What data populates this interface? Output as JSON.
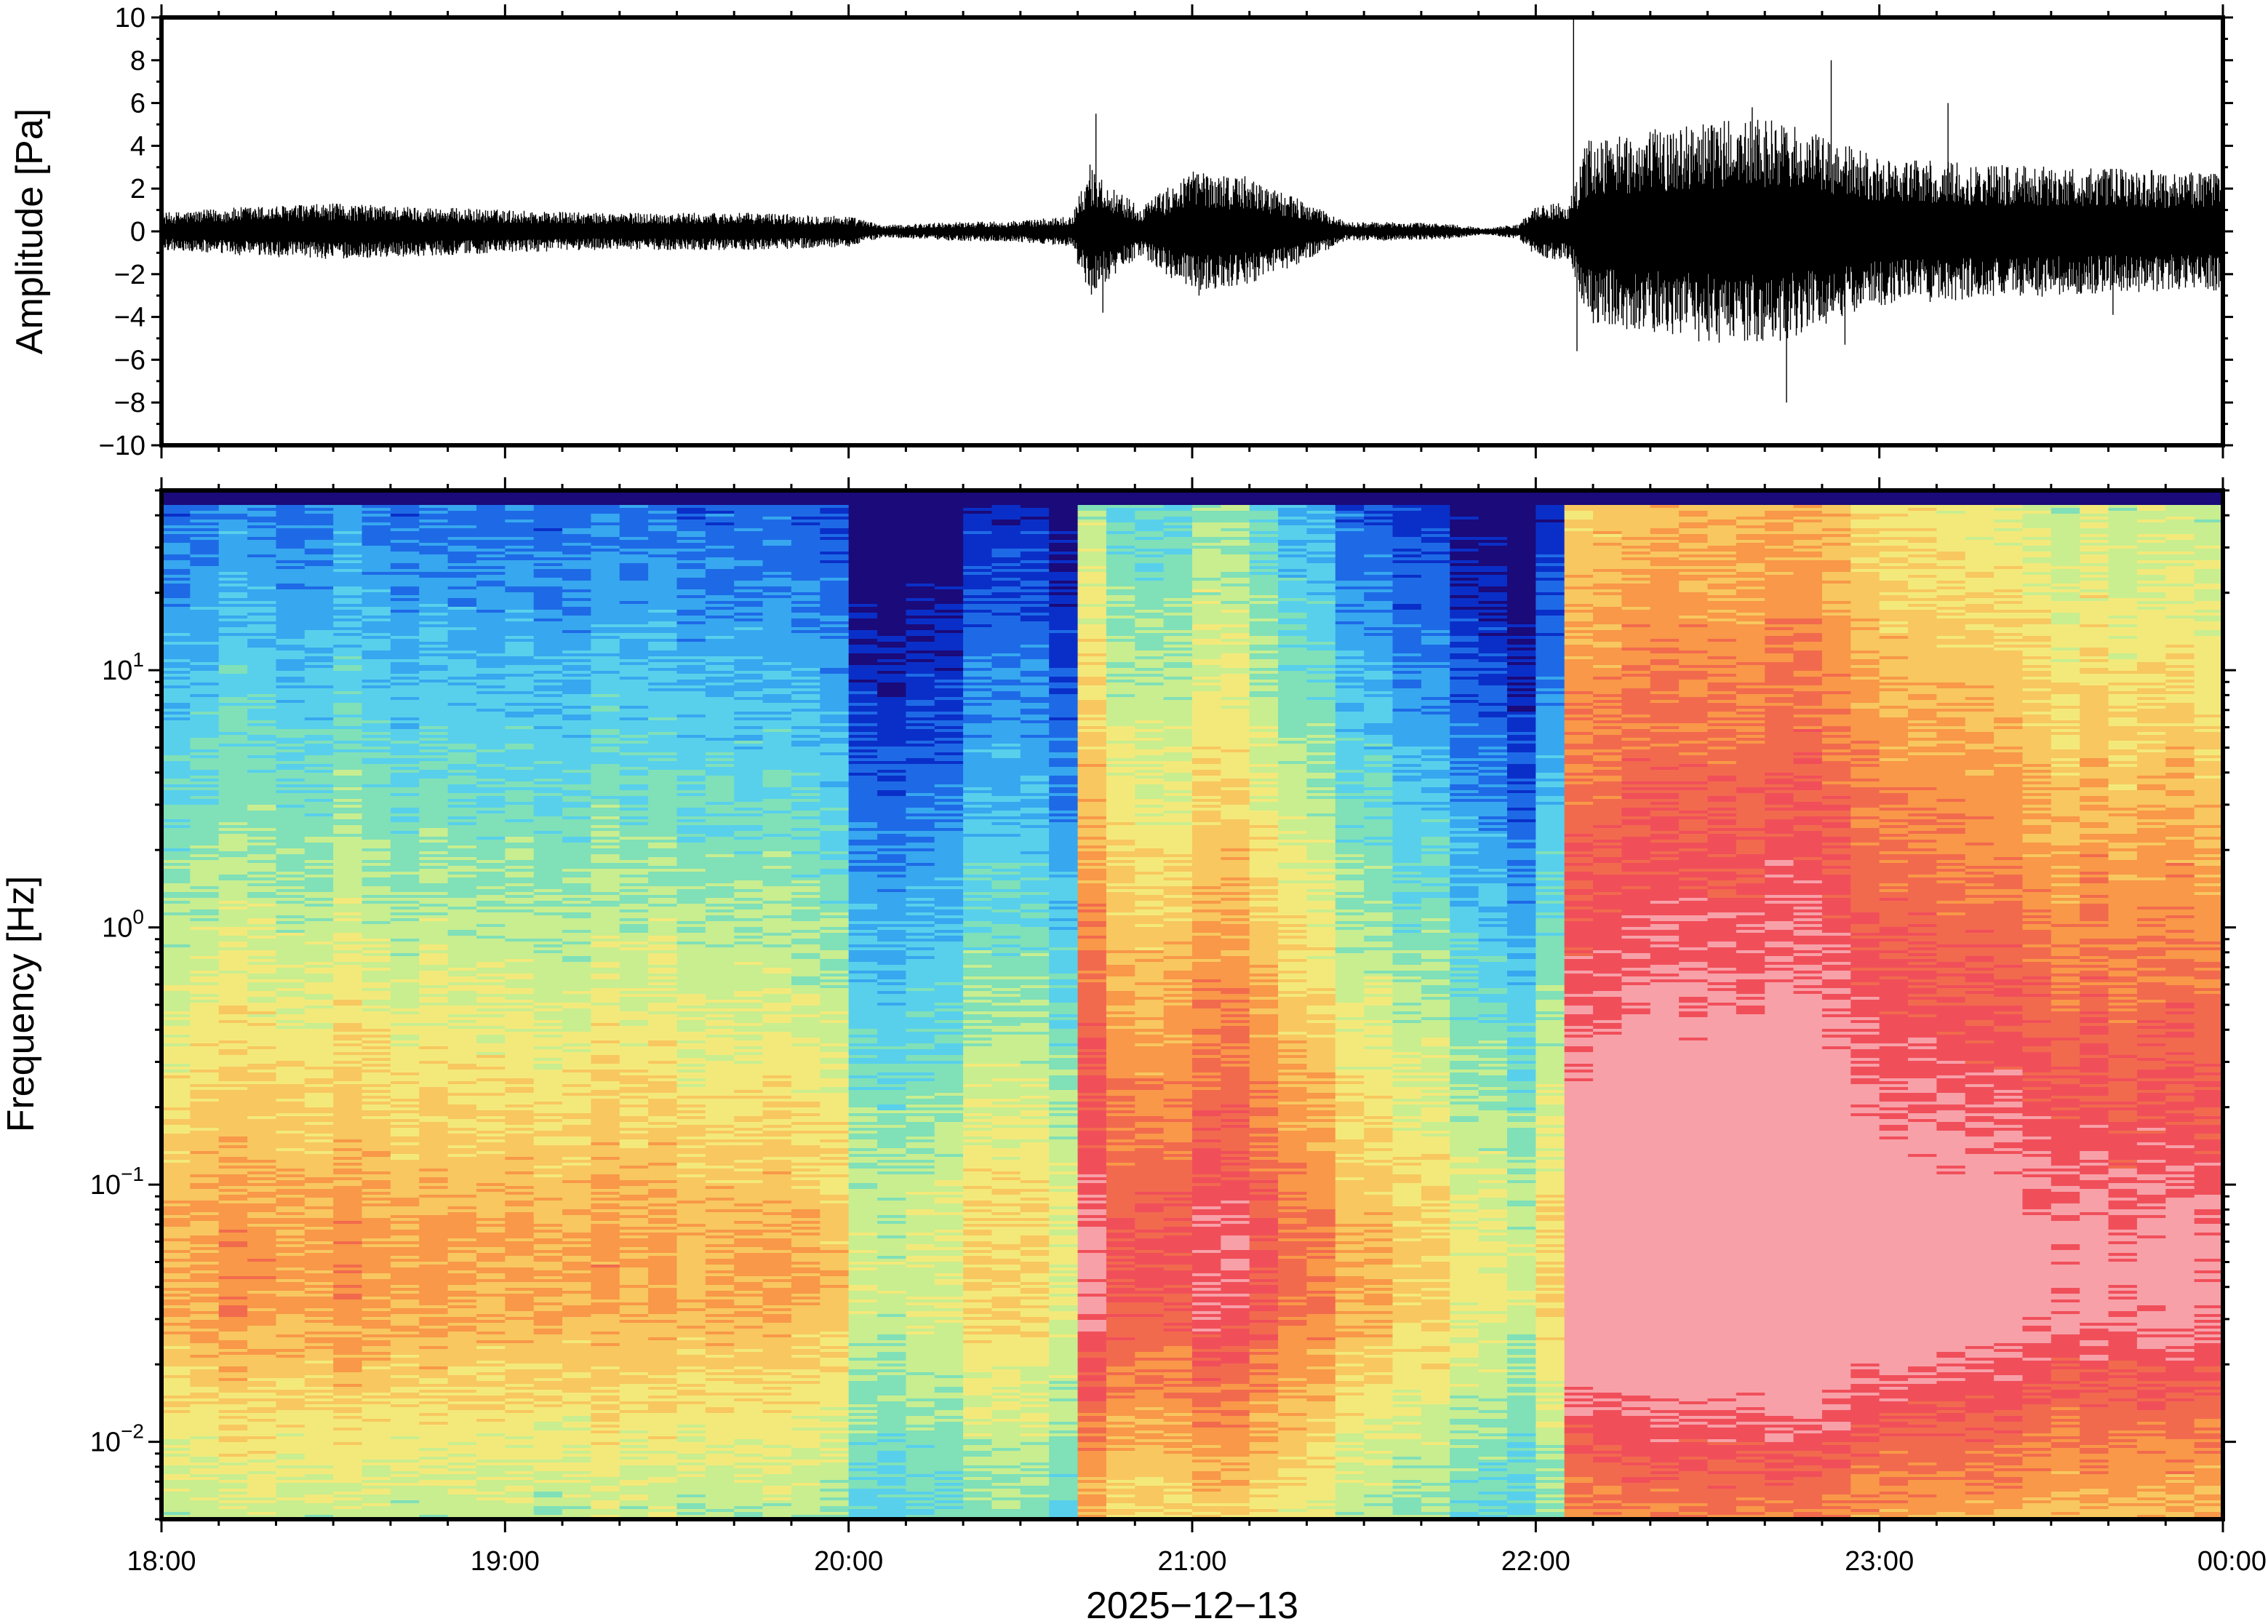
{
  "chart_data": [
    {
      "type": "line",
      "panel": "waveform",
      "title": "",
      "xlabel": "",
      "ylabel": "Amplitude [Pa]",
      "ylim": [
        -10,
        10
      ],
      "yticks": [
        10,
        8,
        6,
        4,
        2,
        0,
        -2,
        -4,
        -6,
        -8,
        -10
      ],
      "ytick_labels": [
        "10",
        "8",
        "6",
        "4",
        "2",
        "0",
        "−2",
        "−4",
        "−6",
        "−8",
        "−10"
      ],
      "x_range": [
        "18:00",
        "00:00"
      ],
      "envelope_hours": [
        18.0,
        18.25,
        18.5,
        18.75,
        19.0,
        19.25,
        19.5,
        19.75,
        20.0,
        20.1,
        20.3,
        20.5,
        20.65,
        20.7,
        20.75,
        20.85,
        21.0,
        21.15,
        21.3,
        21.45,
        21.6,
        21.75,
        21.85,
        21.95,
        22.0,
        22.1,
        22.15,
        22.3,
        22.5,
        22.7,
        22.85,
        23.0,
        23.25,
        23.5,
        23.75,
        24.0
      ],
      "envelope_pa": [
        0.6,
        0.8,
        0.9,
        0.8,
        0.7,
        0.6,
        0.6,
        0.6,
        0.5,
        0.2,
        0.3,
        0.35,
        0.5,
        2.2,
        1.6,
        0.8,
        2.0,
        1.8,
        1.1,
        0.3,
        0.3,
        0.25,
        0.1,
        0.25,
        0.8,
        1.0,
        3.0,
        3.2,
        3.6,
        3.6,
        3.0,
        2.4,
        2.2,
        2.1,
        2.0,
        1.9
      ],
      "spikes": [
        [
          20.72,
          5.5
        ],
        [
          20.74,
          -3.8
        ],
        [
          21.02,
          -3.0
        ],
        [
          22.11,
          10.0
        ],
        [
          22.12,
          -5.6
        ],
        [
          22.63,
          5.8
        ],
        [
          22.73,
          -8.0
        ],
        [
          22.86,
          8.0
        ],
        [
          22.9,
          -5.3
        ],
        [
          23.2,
          6.0
        ],
        [
          23.68,
          -3.9
        ]
      ],
      "series": [
        {
          "name": "",
          "color": "#000000"
        }
      ]
    },
    {
      "type": "heatmap",
      "panel": "spectrogram",
      "title": "",
      "xlabel": "2025−12−13",
      "ylabel": "Frequency [Hz]",
      "yscale": "log",
      "ylim": [
        0.005,
        50
      ],
      "yticks": [
        0.01,
        0.1,
        1,
        10
      ],
      "ytick_labels": [
        {
          "base": "10",
          "exp": "−2"
        },
        {
          "base": "10",
          "exp": "−1"
        },
        {
          "base": "10",
          "exp": "0"
        },
        {
          "base": "10",
          "exp": "1"
        }
      ],
      "x_hours": [
        18,
        19,
        20,
        21,
        22,
        23,
        24
      ],
      "xtick_labels": [
        "18:00",
        "19:00",
        "20:00",
        "21:00",
        "22:00",
        "23:00",
        "00:00"
      ],
      "segment_hours": 0.08333,
      "colormap": [
        "#1a0a7a",
        "#0a2fc8",
        "#1e6ae6",
        "#37a7ef",
        "#58d0ec",
        "#80e0b8",
        "#c8ee90",
        "#f3e97a",
        "#f8c760",
        "#f89848",
        "#f26a4e",
        "#f04f5a",
        "#f8a0a8"
      ],
      "activity_hours": [
        18.0,
        18.5,
        19.0,
        19.5,
        19.95,
        20.05,
        20.15,
        20.35,
        20.55,
        20.62,
        20.7,
        20.8,
        20.95,
        21.1,
        21.3,
        21.5,
        21.65,
        21.8,
        21.95,
        22.05,
        22.12,
        22.5,
        22.8,
        23.0,
        23.5,
        24.0
      ],
      "activity_level": [
        0.38,
        0.4,
        0.38,
        0.35,
        0.32,
        0.12,
        0.08,
        0.22,
        0.25,
        0.15,
        0.68,
        0.6,
        0.55,
        0.64,
        0.5,
        0.35,
        0.3,
        0.2,
        0.08,
        0.25,
        0.86,
        0.92,
        0.9,
        0.78,
        0.72,
        0.68
      ]
    }
  ]
}
